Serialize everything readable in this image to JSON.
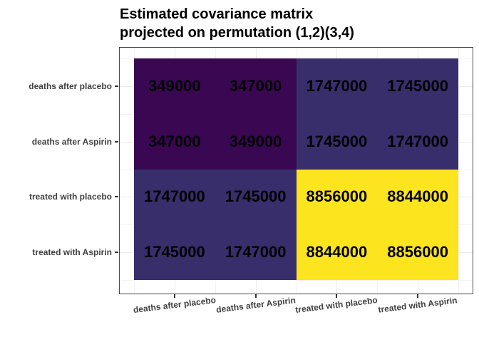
{
  "title": {
    "line1": "Estimated covariance matrix",
    "line2": "projected on permutation (1,2)(3,4)"
  },
  "chart_data": {
    "type": "heatmap",
    "title": "Estimated covariance matrix projected on permutation (1,2)(3,4)",
    "rows_top_to_bottom": [
      "deaths after placebo",
      "deaths after Aspirin",
      "treated with placebo",
      "treated with Aspirin"
    ],
    "columns_left_to_right": [
      "deaths after placebo",
      "deaths after Aspirin",
      "treated with placebo",
      "treated with Aspirin"
    ],
    "values": [
      [
        349000,
        347000,
        1747000,
        1745000
      ],
      [
        347000,
        349000,
        1745000,
        1747000
      ],
      [
        1747000,
        1745000,
        8856000,
        8844000
      ],
      [
        1745000,
        1747000,
        8844000,
        8856000
      ]
    ],
    "cell_colors": [
      [
        "#3A0753",
        "#3A0753",
        "#372E6B",
        "#372E6B"
      ],
      [
        "#3A0753",
        "#3A0753",
        "#372E6B",
        "#372E6B"
      ],
      [
        "#372E6B",
        "#372E6B",
        "#FCE41F",
        "#FCE41F"
      ],
      [
        "#372E6B",
        "#372E6B",
        "#FCE41F",
        "#FCE41F"
      ]
    ],
    "color_scale": {
      "name": "viridis",
      "min": 347000,
      "max": 8856000
    },
    "value_label_color": "#000000",
    "legend": "none",
    "grid": true,
    "xlabel": "",
    "ylabel": ""
  },
  "style": {
    "background": "#FFFFFF",
    "panel_border": "#474747",
    "major_gridline": "#EBEBEB",
    "minor_gridline": "#F3F3F3",
    "axis_text_color": "#404040",
    "tick_color": "#333333",
    "title_color": "#000000"
  }
}
